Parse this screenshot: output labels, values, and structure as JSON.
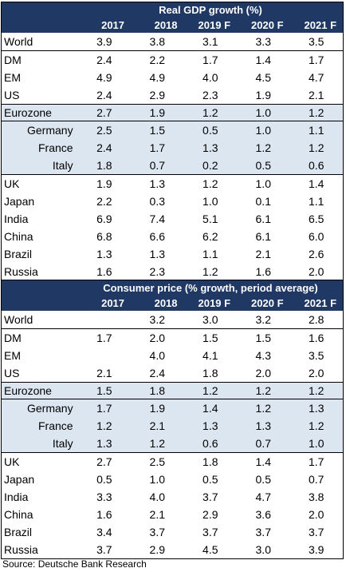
{
  "gdp_table": {
    "title": "Real GDP growth (%)",
    "years": [
      "2017",
      "2018",
      "2019 F",
      "2020 F",
      "2021 F"
    ],
    "rows": [
      {
        "label": "World",
        "values": [
          "3.9",
          "3.8",
          "3.1",
          "3.3",
          "3.5"
        ]
      },
      {
        "label": "DM",
        "values": [
          "2.4",
          "2.2",
          "1.7",
          "1.4",
          "1.7"
        ]
      },
      {
        "label": "EM",
        "values": [
          "4.9",
          "4.9",
          "4.0",
          "4.5",
          "4.7"
        ]
      },
      {
        "label": "US",
        "values": [
          "2.4",
          "2.9",
          "2.3",
          "1.9",
          "2.1"
        ]
      },
      {
        "label": "Eurozone",
        "values": [
          "2.7",
          "1.9",
          "1.2",
          "1.0",
          "1.2"
        ]
      },
      {
        "label": "Germany",
        "values": [
          "2.5",
          "1.5",
          "0.5",
          "1.0",
          "1.1"
        ]
      },
      {
        "label": "France",
        "values": [
          "2.4",
          "1.7",
          "1.3",
          "1.2",
          "1.2"
        ]
      },
      {
        "label": "Italy",
        "values": [
          "1.8",
          "0.7",
          "0.2",
          "0.5",
          "0.6"
        ]
      },
      {
        "label": "UK",
        "values": [
          "1.9",
          "1.3",
          "1.2",
          "1.0",
          "1.4"
        ]
      },
      {
        "label": "Japan",
        "values": [
          "2.2",
          "0.3",
          "1.0",
          "0.1",
          "1.1"
        ]
      },
      {
        "label": "India",
        "values": [
          "6.9",
          "7.4",
          "5.1",
          "6.1",
          "6.5"
        ]
      },
      {
        "label": "China",
        "values": [
          "6.8",
          "6.6",
          "6.2",
          "6.1",
          "6.0"
        ]
      },
      {
        "label": "Brazil",
        "values": [
          "1.3",
          "1.3",
          "1.1",
          "2.1",
          "2.6"
        ]
      },
      {
        "label": "Russia",
        "values": [
          "1.6",
          "2.3",
          "1.2",
          "1.6",
          "2.0"
        ]
      }
    ]
  },
  "cpi_table": {
    "title": "Consumer price (% growth, period average)",
    "years": [
      "2017",
      "2018",
      "2019 F",
      "2020 F",
      "2021 F"
    ],
    "rows": [
      {
        "label": "World",
        "values": [
          "",
          "3.2",
          "3.0",
          "3.2",
          "2.8"
        ]
      },
      {
        "label": "DM",
        "values": [
          "1.7",
          "2.0",
          "1.5",
          "1.5",
          "1.6"
        ]
      },
      {
        "label": "EM",
        "values": [
          "",
          "4.0",
          "4.1",
          "4.3",
          "3.5"
        ]
      },
      {
        "label": "US",
        "values": [
          "2.1",
          "2.4",
          "1.8",
          "2.0",
          "2.0"
        ]
      },
      {
        "label": "Eurozone",
        "values": [
          "1.5",
          "1.8",
          "1.2",
          "1.2",
          "1.2"
        ]
      },
      {
        "label": "Germany",
        "values": [
          "1.7",
          "1.9",
          "1.4",
          "1.2",
          "1.3"
        ]
      },
      {
        "label": "France",
        "values": [
          "1.2",
          "2.1",
          "1.3",
          "1.3",
          "1.2"
        ]
      },
      {
        "label": "Italy",
        "values": [
          "1.3",
          "1.2",
          "0.6",
          "0.7",
          "1.0"
        ]
      },
      {
        "label": "UK",
        "values": [
          "2.7",
          "2.5",
          "1.8",
          "1.4",
          "1.7"
        ]
      },
      {
        "label": "Japan",
        "values": [
          "0.5",
          "1.0",
          "0.5",
          "0.5",
          "0.7"
        ]
      },
      {
        "label": "India",
        "values": [
          "3.3",
          "4.0",
          "3.7",
          "4.7",
          "3.8"
        ]
      },
      {
        "label": "China",
        "values": [
          "1.6",
          "2.1",
          "2.9",
          "3.6",
          "2.0"
        ]
      },
      {
        "label": "Brazil",
        "values": [
          "3.4",
          "3.7",
          "3.7",
          "3.7",
          "3.7"
        ]
      },
      {
        "label": "Russia",
        "values": [
          "3.7",
          "2.9",
          "4.5",
          "3.0",
          "3.9"
        ]
      }
    ]
  },
  "source": "Source: Deutsche Bank Research"
}
